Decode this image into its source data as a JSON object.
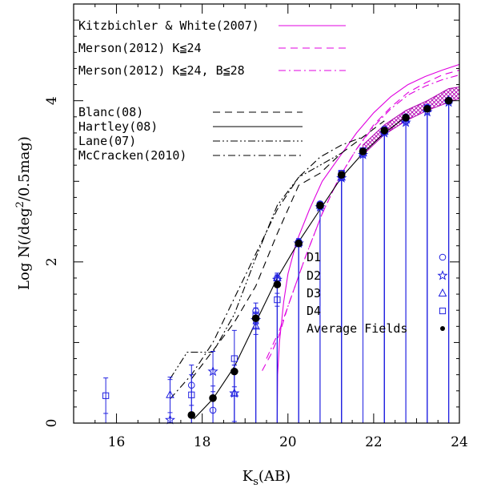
{
  "chart_data": {
    "type": "scatter",
    "xlabel": "K",
    "xlabel_sub": "s",
    "xlabel_suffix": "(AB)",
    "ylabel": "Log N(/deg",
    "ylabel_sup": "2",
    "ylabel_suffix": "/0.5mag)",
    "xlim": [
      15,
      24
    ],
    "ylim": [
      0,
      5.2
    ],
    "x_ticks": [
      16,
      18,
      20,
      22,
      24
    ],
    "y_ticks": [
      0,
      2,
      4
    ],
    "grid": false,
    "model_legend": [
      {
        "label": "Kitzbichler & White(2007)",
        "style": "solid",
        "color": "#e000e0"
      },
      {
        "label": "Merson(2012) K≦24",
        "style": "dashed",
        "color": "#e000e0"
      },
      {
        "label": "Merson(2012) K≦24, B≦28",
        "style": "dashdot",
        "color": "#e000e0"
      }
    ],
    "survey_legend": [
      {
        "label": "Blanc(08)",
        "style": "dashed",
        "color": "#000000"
      },
      {
        "label": "Hartley(08)",
        "style": "solid",
        "color": "#000000"
      },
      {
        "label": "Lane(07)",
        "style": "dashdotdot",
        "color": "#000000"
      },
      {
        "label": "McCracken(2010)",
        "style": "dashdot",
        "color": "#000000"
      }
    ],
    "field_legend": [
      {
        "label": "D1",
        "marker": "circle",
        "color": "#2020e0"
      },
      {
        "label": "D2",
        "marker": "star",
        "color": "#2020e0"
      },
      {
        "label": "D3",
        "marker": "triangle",
        "color": "#2020e0"
      },
      {
        "label": "D4",
        "marker": "square",
        "color": "#2020e0"
      },
      {
        "label": "Average Fields",
        "marker": "dot",
        "color": "#000000"
      }
    ],
    "series": [
      {
        "name": "Kitzbichler & White(2007)",
        "style": "solid",
        "color": "#e000e0",
        "x": [
          19.75,
          19.76,
          19.8,
          19.9,
          20.0,
          20.2,
          20.5,
          20.8,
          21.2,
          21.6,
          22.0,
          22.4,
          22.8,
          23.2,
          23.6,
          24.0
        ],
        "y": [
          0.0,
          0.6,
          1.0,
          1.5,
          1.85,
          2.25,
          2.65,
          3.0,
          3.3,
          3.6,
          3.85,
          4.05,
          4.2,
          4.3,
          4.38,
          4.45
        ]
      },
      {
        "name": "Merson(2012) K≦24",
        "style": "dashed",
        "color": "#e000e0",
        "x": [
          19.4,
          19.6,
          19.8,
          20.0,
          20.4,
          20.8,
          21.2,
          21.6,
          22.0,
          22.4,
          22.8,
          23.2,
          23.6,
          24.0
        ],
        "y": [
          0.65,
          0.85,
          1.1,
          1.45,
          2.05,
          2.6,
          3.05,
          3.4,
          3.7,
          3.92,
          4.1,
          4.22,
          4.32,
          4.38
        ]
      },
      {
        "name": "Merson(2012) K≦24, B≦28",
        "style": "dashdot",
        "color": "#e000e0",
        "x": [
          19.5,
          19.8,
          20.0,
          20.4,
          20.8,
          21.2,
          21.6,
          22.0,
          22.4,
          22.8,
          23.2,
          23.6,
          24.0
        ],
        "y": [
          0.8,
          1.15,
          1.45,
          2.05,
          2.6,
          3.05,
          3.4,
          3.68,
          3.9,
          4.07,
          4.18,
          4.26,
          4.32
        ]
      },
      {
        "name": "Blanc(08)",
        "style": "dashed",
        "color": "#000000",
        "x": [
          17.75,
          18.25,
          18.75,
          19.25,
          19.75,
          20.25,
          20.75,
          21.25,
          21.75,
          22.25
        ],
        "y": [
          0.55,
          0.9,
          1.25,
          1.7,
          2.35,
          2.95,
          3.1,
          3.35,
          3.55,
          3.75
        ]
      },
      {
        "name": "Hartley(08)",
        "style": "solid",
        "color": "#000000",
        "x": [
          17.8,
          18.25,
          18.75,
          19.25,
          19.75,
          20.25,
          20.75,
          21.25,
          21.75,
          22.25,
          22.75
        ],
        "y": [
          0.05,
          0.3,
          0.7,
          1.25,
          1.8,
          2.25,
          2.65,
          3.05,
          3.35,
          3.6,
          3.8
        ]
      },
      {
        "name": "Lane(07)",
        "style": "dashdotdot",
        "color": "#000000",
        "x": [
          17.25,
          17.65,
          17.95,
          18.25,
          18.75,
          19.25,
          19.75,
          20.25,
          20.75,
          21.25
        ],
        "y": [
          0.55,
          0.88,
          0.88,
          0.88,
          1.35,
          2.05,
          2.7,
          3.05,
          3.2,
          3.35
        ]
      },
      {
        "name": "McCracken(2010)",
        "style": "dashdot",
        "color": "#000000",
        "x": [
          17.25,
          17.75,
          18.25,
          18.75,
          19.25,
          19.75,
          20.25,
          20.75,
          21.25,
          21.75
        ],
        "y": [
          0.3,
          0.6,
          1.0,
          1.55,
          2.1,
          2.65,
          3.05,
          3.3,
          3.45,
          3.55
        ]
      }
    ],
    "band": {
      "color": "#b000b0",
      "x": [
        21.75,
        22.25,
        22.75,
        23.25,
        23.75,
        24.0
      ],
      "lower": [
        3.33,
        3.58,
        3.75,
        3.88,
        3.98,
        4.03
      ],
      "upper": [
        3.45,
        3.7,
        3.88,
        4.0,
        4.15,
        4.17
      ]
    },
    "points": {
      "average": {
        "x": [
          17.75,
          18.25,
          18.75,
          19.25,
          19.75,
          20.25,
          20.75,
          21.25,
          21.75,
          22.25,
          22.75,
          23.25,
          23.75
        ],
        "y": [
          0.1,
          0.31,
          0.64,
          1.3,
          1.72,
          2.23,
          2.7,
          3.08,
          3.37,
          3.63,
          3.79,
          3.9,
          4.0
        ]
      },
      "D1": {
        "x": [
          17.75,
          18.25,
          19.25,
          19.75,
          20.25,
          20.75,
          21.25,
          21.75,
          22.25,
          22.75,
          23.25,
          23.75
        ],
        "y": [
          0.47,
          0.16,
          1.39,
          1.8,
          2.25,
          2.72,
          3.1,
          3.38,
          3.65,
          3.8,
          3.92,
          4.0
        ],
        "err": [
          0.25,
          0.3,
          0.1,
          0.06,
          0.04,
          0.03,
          0.02,
          0.02,
          0.02,
          0.02,
          0.02,
          0.02
        ]
      },
      "D2": {
        "x": [
          17.25,
          18.25,
          18.75,
          19.25,
          19.75,
          20.25,
          20.75,
          21.25,
          21.75,
          22.25,
          22.75,
          23.25,
          23.75
        ],
        "y": [
          0.04,
          0.64,
          0.37,
          1.28,
          1.78,
          2.23,
          2.68,
          3.04,
          3.33,
          3.6,
          3.73,
          3.86,
          3.98
        ],
        "err": [
          0.5,
          0.25,
          0.35,
          0.1,
          0.06,
          0.04,
          0.03,
          0.02,
          0.02,
          0.02,
          0.02,
          0.02,
          0.02
        ]
      },
      "D3": {
        "x": [
          17.25,
          18.75,
          19.25,
          19.75,
          20.25,
          20.75,
          21.25,
          21.75,
          22.25,
          22.75,
          23.25,
          23.75
        ],
        "y": [
          0.35,
          0.37,
          1.2,
          1.8,
          2.24,
          2.7,
          3.05,
          3.35,
          3.62,
          3.76,
          3.9,
          4.01
        ],
        "err": [
          0.22,
          0.35,
          0.1,
          0.06,
          0.04,
          0.03,
          0.02,
          0.02,
          0.02,
          0.02,
          0.02,
          0.02
        ]
      },
      "D4": {
        "x": [
          15.75,
          17.75,
          18.75,
          19.25,
          19.75,
          20.25,
          20.75,
          21.25,
          21.75,
          22.25,
          22.75,
          23.25,
          23.75
        ],
        "y": [
          0.34,
          0.35,
          0.8,
          1.33,
          1.53,
          2.23,
          2.7,
          3.1,
          3.38,
          3.62,
          3.78,
          3.91,
          4.0
        ],
        "err": [
          0.22,
          0.25,
          0.35,
          0.1,
          0.08,
          0.04,
          0.03,
          0.02,
          0.02,
          0.02,
          0.02,
          0.02,
          0.02
        ]
      }
    }
  }
}
